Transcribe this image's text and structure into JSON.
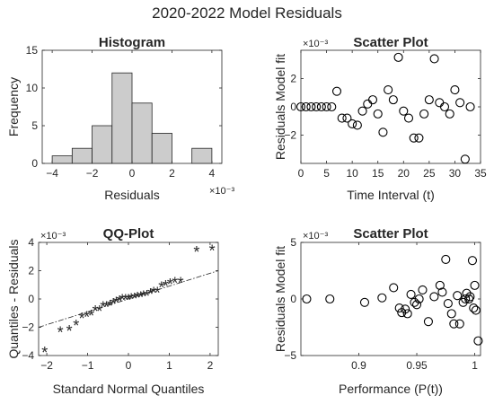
{
  "figure": {
    "title": "2020-2022 Model Residuals"
  },
  "chart_data": [
    {
      "id": "hist",
      "type": "bar",
      "title": "Histogram",
      "xlabel": "Residuals",
      "ylabel": "Frequency",
      "x_exponent": "×10⁻³",
      "xlim": [
        -4.5,
        4.5
      ],
      "ylim": [
        0,
        15
      ],
      "xticks": [
        -4,
        -2,
        0,
        2,
        4
      ],
      "yticks": [
        0,
        5,
        10,
        15
      ],
      "bin_edges": [
        -4,
        -3,
        -2,
        -1,
        0,
        1,
        2,
        3,
        4
      ],
      "values": [
        1,
        2,
        5,
        12,
        8,
        4,
        0,
        2
      ],
      "bar_color": "#cccccc",
      "grid": false
    },
    {
      "id": "scatter1",
      "type": "scatter",
      "title": "Scatter Plot",
      "xlabel": "Time Interval (t)",
      "ylabel": "Residuals Model fit",
      "y_exponent": "×10⁻³",
      "xlim": [
        0,
        35
      ],
      "ylim": [
        -4,
        4
      ],
      "xticks": [
        0,
        5,
        10,
        15,
        20,
        25,
        30,
        35
      ],
      "yticks": [
        -2,
        0,
        2
      ],
      "marker": "circle",
      "x": [
        0,
        1,
        2,
        3,
        4,
        5,
        6,
        7,
        8,
        9,
        10,
        11,
        12,
        13,
        14,
        15,
        16,
        17,
        18,
        19,
        20,
        21,
        22,
        23,
        24,
        25,
        26,
        27,
        28,
        29,
        30,
        31,
        32,
        33
      ],
      "y": [
        0,
        0,
        0,
        0,
        0,
        0,
        0,
        1.1,
        -0.8,
        -0.8,
        -1.2,
        -1.3,
        -0.3,
        0.2,
        0.5,
        -0.5,
        -1.8,
        1.2,
        0.5,
        3.5,
        -0.3,
        -0.8,
        -2.2,
        -2.2,
        -0.5,
        0.5,
        3.4,
        0.3,
        0,
        -0.5,
        1.2,
        0.3,
        -3.7,
        0
      ],
      "grid": false
    },
    {
      "id": "qq",
      "type": "scatter",
      "title": "QQ-Plot",
      "xlabel": "Standard Normal Quantiles",
      "ylabel": "Quantiles - Residuals",
      "y_exponent": "×10⁻³",
      "xlim": [
        -2.2,
        2.2
      ],
      "ylim": [
        -4,
        4
      ],
      "xticks": [
        -2,
        -1,
        0,
        1,
        2
      ],
      "yticks": [
        -4,
        -2,
        0,
        2,
        4
      ],
      "marker": "asterisk",
      "points": [
        [
          -2.05,
          -3.7
        ],
        [
          -1.67,
          -2.3
        ],
        [
          -1.45,
          -2.2
        ],
        [
          -1.28,
          -1.8
        ],
        [
          -1.14,
          -1.3
        ],
        [
          -1.02,
          -1.2
        ],
        [
          -0.91,
          -1.1
        ],
        [
          -0.81,
          -0.8
        ],
        [
          -0.71,
          -0.8
        ],
        [
          -0.62,
          -0.5
        ],
        [
          -0.54,
          -0.5
        ],
        [
          -0.45,
          -0.4
        ],
        [
          -0.37,
          -0.3
        ],
        [
          -0.3,
          -0.2
        ],
        [
          -0.22,
          -0.1
        ],
        [
          -0.15,
          0
        ],
        [
          -0.07,
          0
        ],
        [
          0,
          0
        ],
        [
          0.07,
          0.05
        ],
        [
          0.15,
          0.1
        ],
        [
          0.22,
          0.15
        ],
        [
          0.3,
          0.2
        ],
        [
          0.37,
          0.25
        ],
        [
          0.45,
          0.3
        ],
        [
          0.54,
          0.4
        ],
        [
          0.62,
          0.5
        ],
        [
          0.71,
          0.5
        ],
        [
          0.81,
          0.9
        ],
        [
          0.91,
          1.0
        ],
        [
          1.02,
          1.1
        ],
        [
          1.14,
          1.2
        ],
        [
          1.28,
          1.2
        ],
        [
          1.67,
          3.4
        ],
        [
          2.05,
          3.5
        ]
      ],
      "reference_line": {
        "x": [
          -2.2,
          2.2
        ],
        "y": [
          -2.0,
          2.0
        ],
        "style": "dash-dot"
      },
      "grid": false
    },
    {
      "id": "scatter2",
      "type": "scatter",
      "title": "Scatter Plot",
      "xlabel": "Performance (P(t))",
      "ylabel": "Residuals Model fit",
      "y_exponent": "×10⁻³",
      "xlim": [
        0.85,
        1.005
      ],
      "ylim": [
        -5,
        5
      ],
      "xticks": [
        0.9,
        0.95,
        1
      ],
      "yticks": [
        -5,
        0,
        5
      ],
      "marker": "circle",
      "points": [
        [
          0.855,
          0
        ],
        [
          0.875,
          0
        ],
        [
          0.905,
          -0.3
        ],
        [
          0.92,
          0.1
        ],
        [
          0.93,
          1.0
        ],
        [
          0.935,
          -0.8
        ],
        [
          0.937,
          -1.2
        ],
        [
          0.94,
          -0.9
        ],
        [
          0.942,
          -1.3
        ],
        [
          0.945,
          0.4
        ],
        [
          0.948,
          -0.3
        ],
        [
          0.95,
          -0.5
        ],
        [
          0.952,
          0
        ],
        [
          0.955,
          0.8
        ],
        [
          0.96,
          -2.0
        ],
        [
          0.965,
          0.2
        ],
        [
          0.97,
          1.2
        ],
        [
          0.972,
          0.6
        ],
        [
          0.975,
          3.5
        ],
        [
          0.977,
          -0.4
        ],
        [
          0.98,
          -1.3
        ],
        [
          0.982,
          -2.2
        ],
        [
          0.985,
          0.3
        ],
        [
          0.987,
          -2.2
        ],
        [
          0.99,
          -0.3
        ],
        [
          0.992,
          0
        ],
        [
          0.993,
          0.5
        ],
        [
          0.995,
          0
        ],
        [
          0.996,
          0.2
        ],
        [
          0.998,
          3.4
        ],
        [
          0.999,
          -0.8
        ],
        [
          1.0,
          1.2
        ],
        [
          1.001,
          -1.0
        ],
        [
          1.003,
          -3.7
        ]
      ],
      "grid": false
    }
  ]
}
